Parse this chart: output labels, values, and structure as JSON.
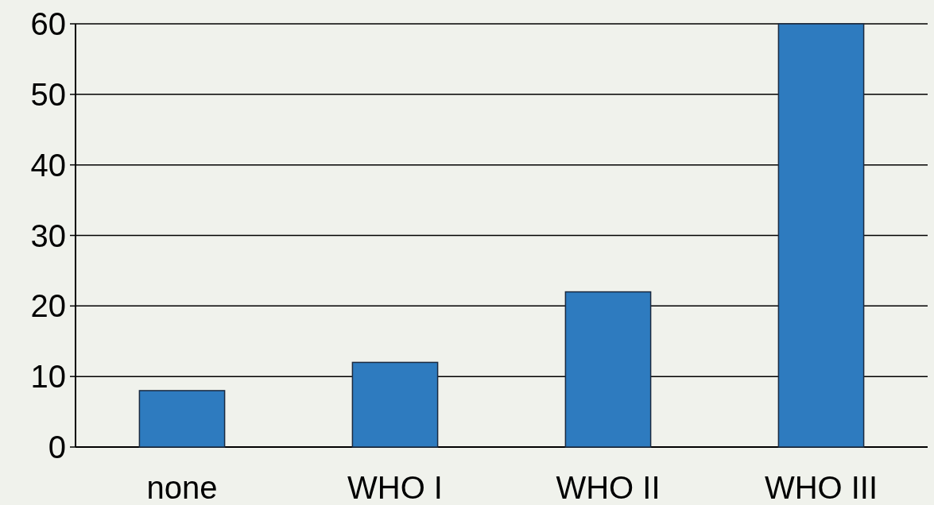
{
  "chart_data": {
    "type": "bar",
    "categories": [
      "none",
      "WHO I",
      "WHO II",
      "WHO III"
    ],
    "values": [
      8,
      12,
      22,
      60
    ],
    "color": "#2e7bbf",
    "ylim": [
      0,
      60
    ],
    "yticks": [
      0,
      10,
      20,
      30,
      40,
      50,
      60
    ],
    "grid": "y"
  }
}
